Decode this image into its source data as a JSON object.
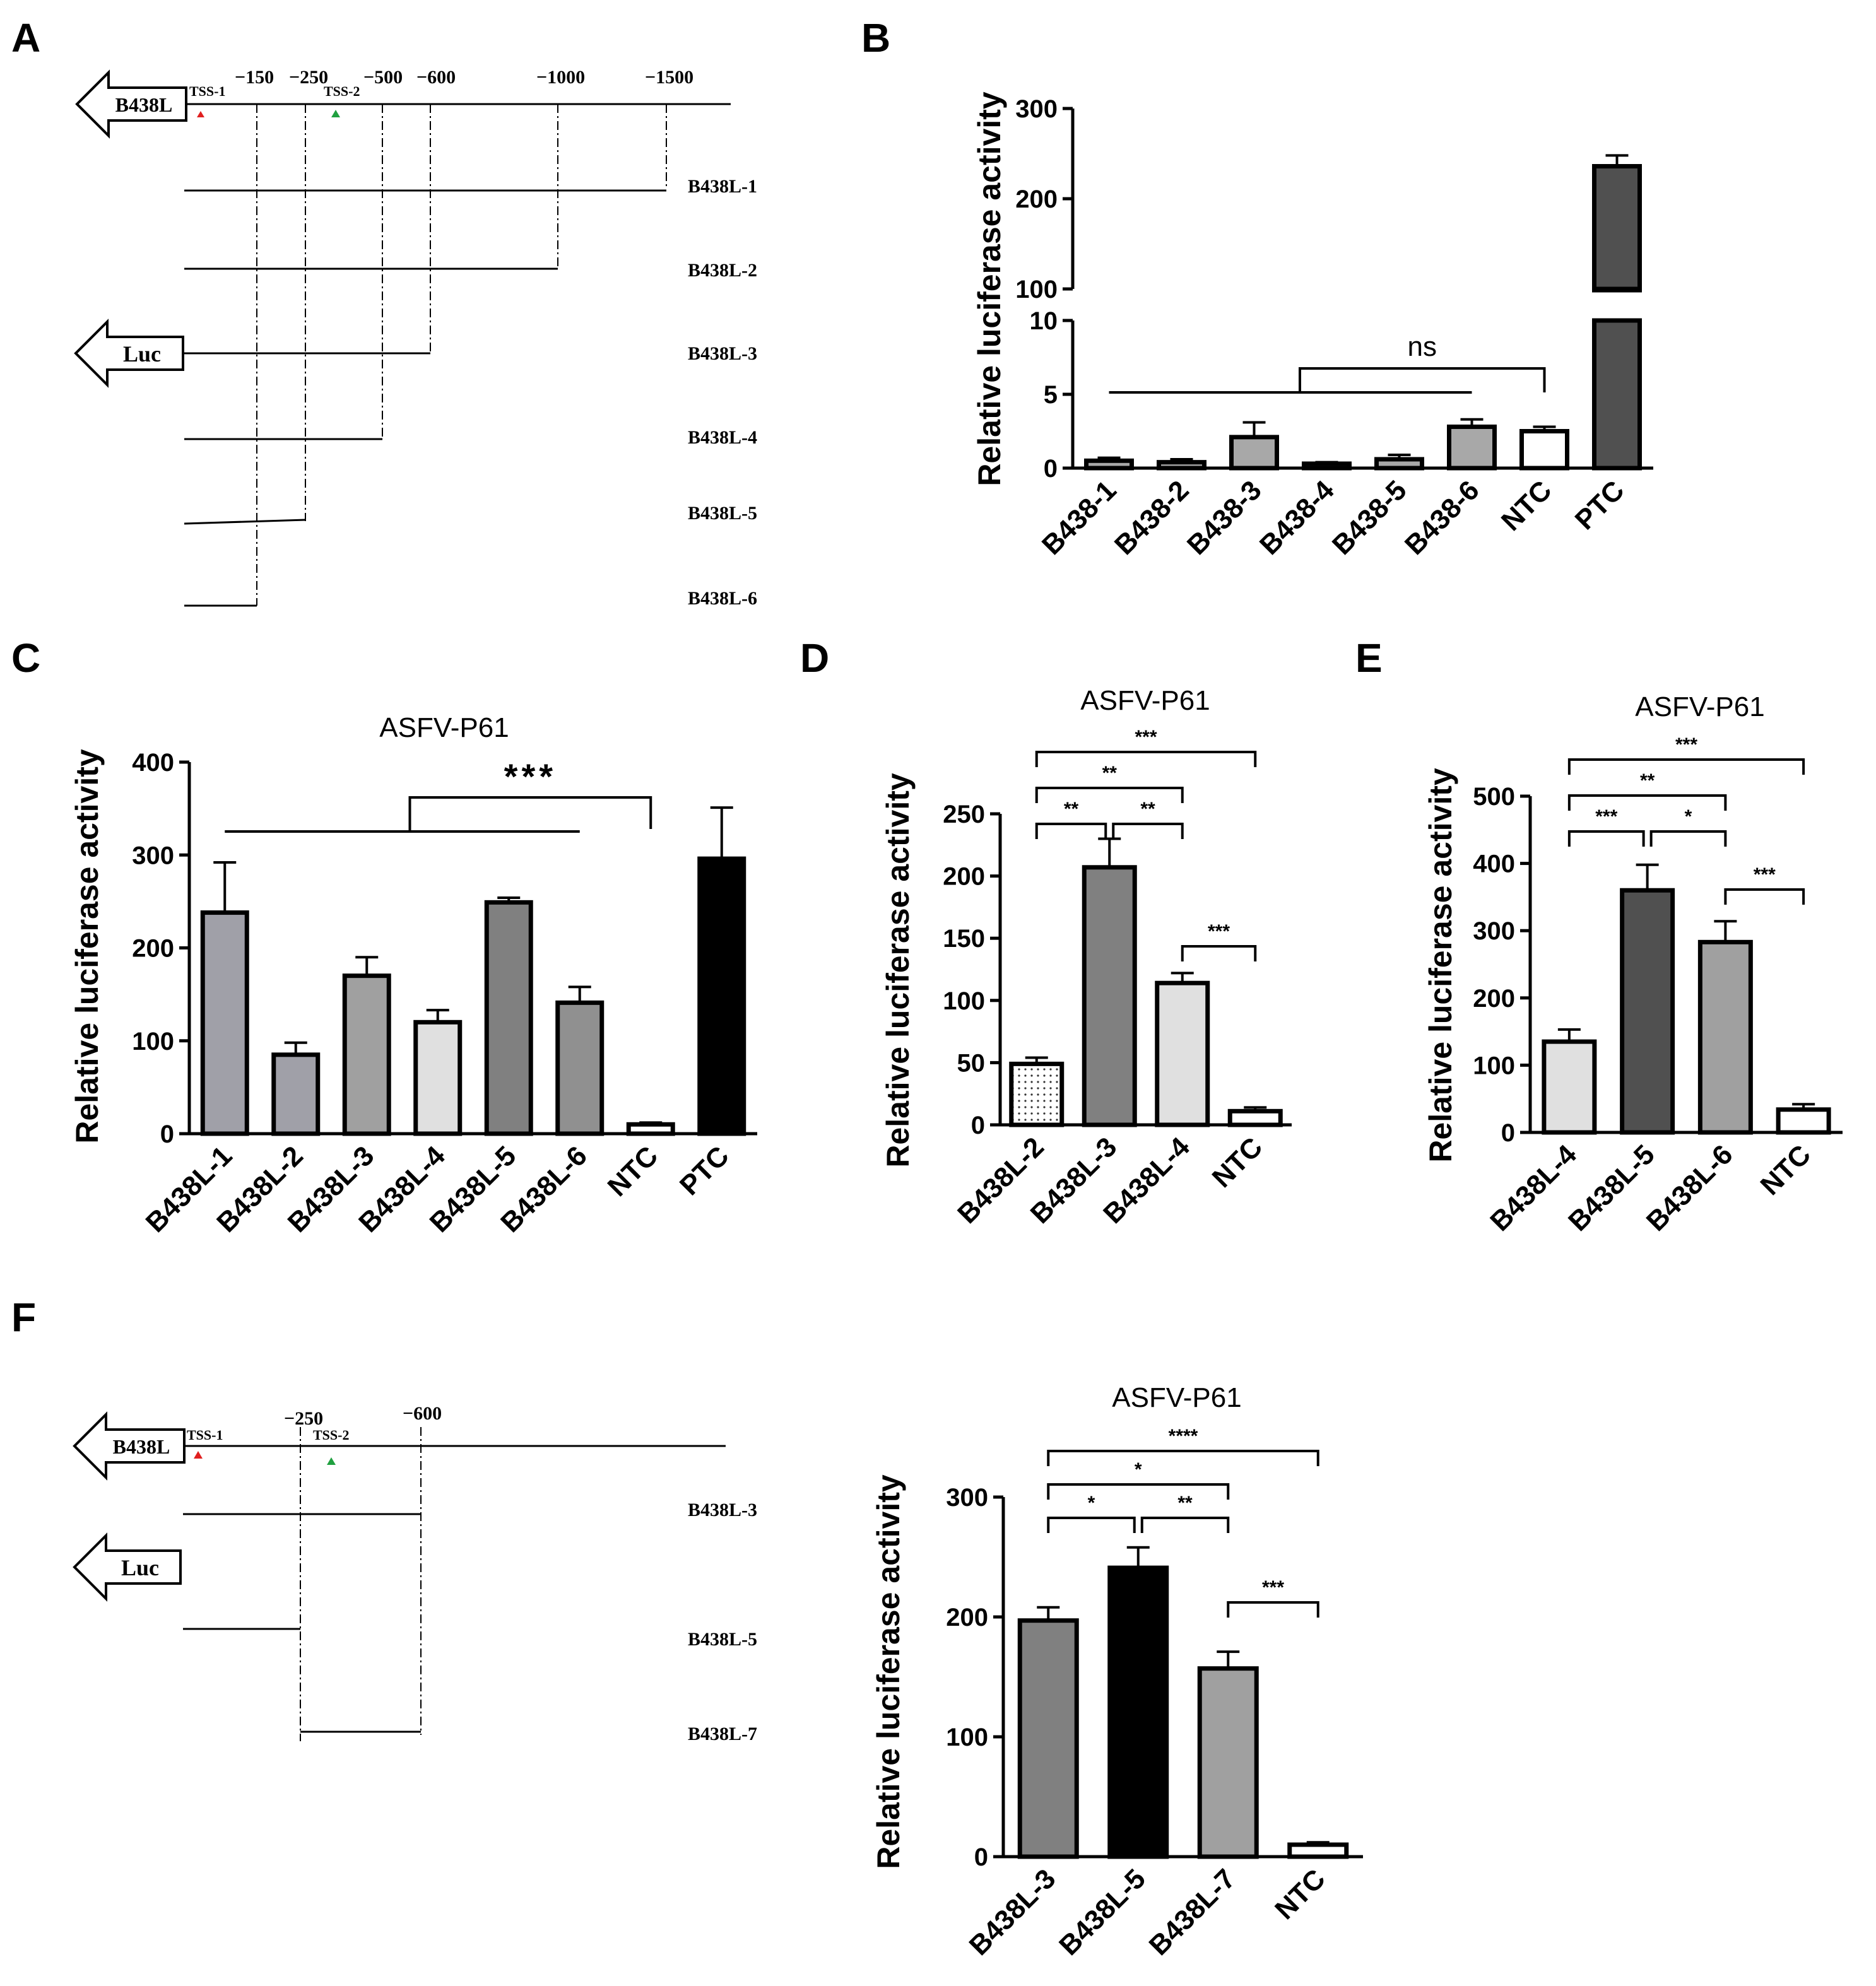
{
  "panels": {
    "A": {
      "letter": "A"
    },
    "B": {
      "letter": "B"
    },
    "C": {
      "letter": "C"
    },
    "D": {
      "letter": "D"
    },
    "E": {
      "letter": "E"
    },
    "F": {
      "letter": "F"
    }
  },
  "maps": [
    {
      "id": "map-a",
      "gene_label": "B438L",
      "reporter_label": "Luc",
      "tss": [
        {
          "label": "TSS-1",
          "color": "#e02020"
        },
        {
          "label": "TSS-2",
          "color": "#20a040"
        }
      ],
      "positions": [
        "−150",
        "−250",
        "−500",
        "−600",
        "−1000",
        "−1500"
      ],
      "constructs": [
        "B438L-1",
        "B438L-2",
        "B438L-3",
        "B438L-4",
        "B438L-5",
        "B438L-6"
      ]
    },
    {
      "id": "map-f",
      "gene_label": "B438L",
      "reporter_label": "Luc",
      "tss": [
        {
          "label": "TSS-1",
          "color": "#e02020"
        },
        {
          "label": "TSS-2",
          "color": "#20a040"
        }
      ],
      "positions": [
        "−250",
        "−600"
      ],
      "constructs": [
        "B438L-3",
        "B438L-5",
        "B438L-7"
      ]
    }
  ],
  "chart_data": [
    {
      "id": "chart-b",
      "type": "bar",
      "title": "",
      "ylabel": "Relative luciferase activity",
      "xlabel": "",
      "categories": [
        "B438-1",
        "B438-2",
        "B438-3",
        "B438-4",
        "B438-5",
        "B438-6",
        "NTC",
        "PTC"
      ],
      "values": [
        0.5,
        0.4,
        2.1,
        0.3,
        0.6,
        2.8,
        2.5,
        236
      ],
      "errors": [
        0.2,
        0.2,
        1.0,
        0.1,
        0.3,
        0.5,
        0.3,
        12
      ],
      "colors": [
        "#a8a8a8",
        "#a8a8a8",
        "#a8a8a8",
        "#a8a8a8",
        "#a8a8a8",
        "#a8a8a8",
        "#ffffff",
        "#505050"
      ],
      "y_axis_broken": true,
      "ylim_lower": [
        0,
        10
      ],
      "ylim_upper": [
        100,
        300
      ],
      "yticks_lower": [
        0,
        5,
        10
      ],
      "yticks_upper": [
        100,
        200,
        300
      ],
      "annotations": [
        {
          "label": "ns",
          "comparison": "B438-1 to B438-6 vs NTC"
        }
      ]
    },
    {
      "id": "chart-c",
      "type": "bar",
      "title": "ASFV-P61",
      "ylabel": "Relative luciferase activity",
      "xlabel": "",
      "categories": [
        "B438L-1",
        "B438L-2",
        "B438L-3",
        "B438L-4",
        "B438L-5",
        "B438L-6",
        "NTC",
        "PTC"
      ],
      "values": [
        238,
        85,
        170,
        120,
        249,
        141,
        10,
        296
      ],
      "errors": [
        54,
        13,
        20,
        13,
        5,
        17,
        2,
        55
      ],
      "colors": [
        "#a0a0a8",
        "#a0a0a8",
        "#a0a0a0",
        "#e0e0e0",
        "#808080",
        "#909090",
        "#ffffff",
        "#000000"
      ],
      "ylim": [
        0,
        400
      ],
      "yticks": [
        0,
        100,
        200,
        300,
        400
      ],
      "annotations": [
        {
          "label": "***",
          "comparison": "B438L-1 to B438L-6 vs NTC"
        }
      ]
    },
    {
      "id": "chart-d",
      "type": "bar",
      "title": "ASFV-P61",
      "ylabel": "Relative luciferase activity",
      "xlabel": "",
      "categories": [
        "B438L-2",
        "B438L-3",
        "B438L-4",
        "NTC"
      ],
      "values": [
        49,
        207,
        114,
        11
      ],
      "errors": [
        5,
        23,
        8,
        3
      ],
      "colors": [
        "#f0f0f0",
        "#808080",
        "#e0e0e0",
        "#ffffff"
      ],
      "ylim": [
        0,
        250
      ],
      "yticks": [
        0,
        50,
        100,
        150,
        200,
        250
      ],
      "annotations": [
        {
          "label": "***",
          "from": 0,
          "to": 3,
          "level": 3
        },
        {
          "label": "**",
          "from": 0,
          "to": 2,
          "level": 2
        },
        {
          "label": "**",
          "from": 0,
          "to": 1,
          "level": 1
        },
        {
          "label": "**",
          "from": 1,
          "to": 2,
          "level": 1
        },
        {
          "label": "***",
          "from": 2,
          "to": 3,
          "level": 0
        }
      ]
    },
    {
      "id": "chart-e",
      "type": "bar",
      "title": "ASFV-P61",
      "ylabel": "Relative luciferase activity",
      "xlabel": "",
      "categories": [
        "B438L-4",
        "B438L-5",
        "B438L-6",
        "NTC"
      ],
      "values": [
        135,
        360,
        283,
        34
      ],
      "errors": [
        18,
        38,
        31,
        8
      ],
      "colors": [
        "#e0e0e0",
        "#505050",
        "#a0a0a0",
        "#ffffff"
      ],
      "ylim": [
        0,
        500
      ],
      "yticks": [
        0,
        100,
        200,
        300,
        400,
        500
      ],
      "annotations": [
        {
          "label": "***",
          "from": 0,
          "to": 3,
          "level": 3
        },
        {
          "label": "**",
          "from": 0,
          "to": 2,
          "level": 2
        },
        {
          "label": "***",
          "from": 0,
          "to": 1,
          "level": 1
        },
        {
          "label": "*",
          "from": 1,
          "to": 2,
          "level": 1
        },
        {
          "label": "***",
          "from": 2,
          "to": 3,
          "level": 0
        }
      ]
    },
    {
      "id": "chart-f",
      "type": "bar",
      "title": "ASFV-P61",
      "ylabel": "Relative luciferase activity",
      "xlabel": "",
      "categories": [
        "B438L-3",
        "B438L-5",
        "B438L-7",
        "NTC"
      ],
      "values": [
        197,
        241,
        157,
        10
      ],
      "errors": [
        11,
        17,
        14,
        2
      ],
      "colors": [
        "#808080",
        "#000000",
        "#a0a0a0",
        "#ffffff"
      ],
      "ylim": [
        0,
        300
      ],
      "yticks": [
        0,
        100,
        200,
        300
      ],
      "annotations": [
        {
          "label": "****",
          "from": 0,
          "to": 3,
          "level": 3
        },
        {
          "label": "*",
          "from": 0,
          "to": 2,
          "level": 2
        },
        {
          "label": "*",
          "from": 0,
          "to": 1,
          "level": 1
        },
        {
          "label": "**",
          "from": 1,
          "to": 2,
          "level": 1
        },
        {
          "label": "***",
          "from": 2,
          "to": 3,
          "level": 0
        }
      ]
    }
  ]
}
